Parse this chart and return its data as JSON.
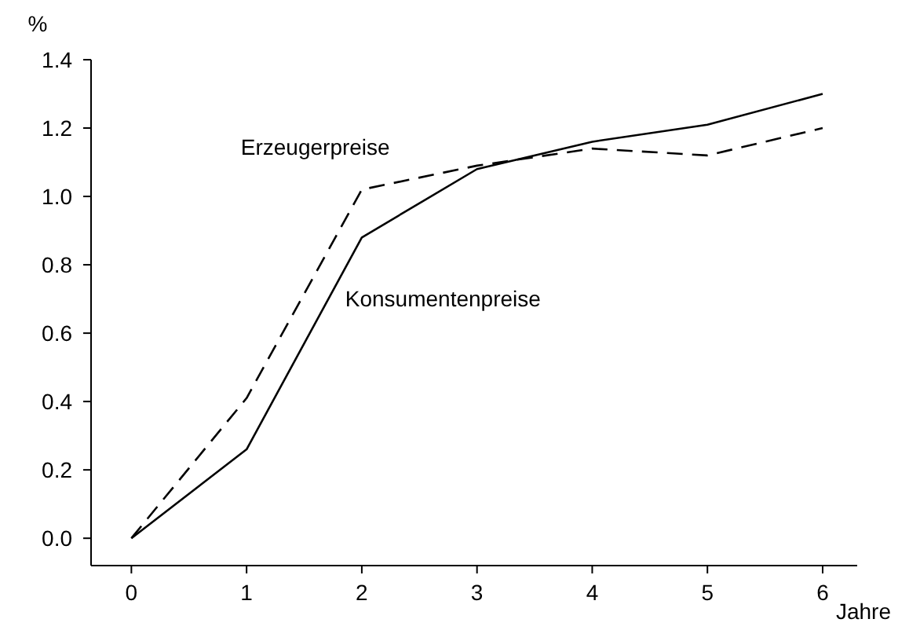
{
  "chart_data": {
    "type": "line",
    "xlabel": "Jahre",
    "ylabel": "%",
    "x": [
      0,
      1,
      2,
      3,
      4,
      5,
      6
    ],
    "xlim": [
      -0.35,
      6.3
    ],
    "xticks": [
      0,
      1,
      2,
      3,
      4,
      5,
      6
    ],
    "ylim": [
      -0.08,
      1.4
    ],
    "yticks": [
      {
        "value": 0,
        "label": "0.0"
      },
      0.2,
      0.4,
      0.6,
      0.8,
      {
        "value": 1,
        "label": "1.0"
      },
      1.2,
      1.4
    ],
    "grid": false,
    "series": [
      {
        "name": "Erzeugerpreise",
        "color": "#000000",
        "line_style": "dashed",
        "values": [
          0,
          0.41,
          1.02,
          1.09,
          1.14,
          1.12,
          1.2
        ]
      },
      {
        "name": "Konsumentenpreise",
        "color": "#000000",
        "line_style": "solid",
        "values": [
          0,
          0.26,
          0.88,
          1.08,
          1.16,
          1.21,
          1.3
        ]
      }
    ]
  }
}
